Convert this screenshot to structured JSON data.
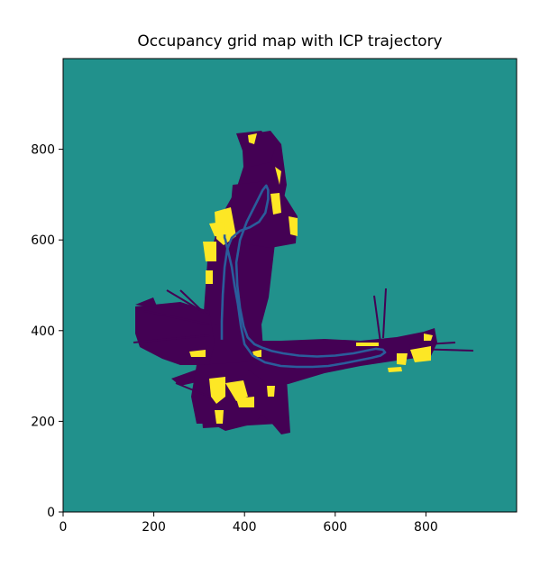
{
  "chart_data": {
    "type": "heatmap",
    "title": "Occupancy grid map with ICP trajectory",
    "xlabel": "",
    "ylabel": "",
    "xlim": [
      0,
      1000
    ],
    "ylim": [
      0,
      1000
    ],
    "x_ticks": [
      0,
      200,
      400,
      600,
      800
    ],
    "y_ticks": [
      0,
      200,
      400,
      600,
      800
    ],
    "grid": false,
    "colormap": "viridis",
    "colors": {
      "unknown": "#21918c",
      "free": "#440154",
      "occupied": "#fde725",
      "trajectory": "#2a5d9b"
    },
    "trajectory": {
      "x": [
        350,
        350,
        352,
        356,
        362,
        372,
        390,
        412,
        432,
        446,
        452,
        452,
        448,
        440,
        425,
        405,
        390,
        382,
        384,
        390,
        398,
        407,
        422,
        440,
        460,
        485,
        520,
        560,
        600,
        640,
        670,
        690,
        705,
        710,
        700,
        680,
        650,
        620,
        585,
        550,
        515,
        480,
        445,
        418,
        400,
        392,
        385,
        378,
        372,
        365,
        360,
        358,
        356,
        356,
        356
      ],
      "y": [
        380,
        420,
        480,
        540,
        580,
        605,
        620,
        628,
        640,
        660,
        690,
        710,
        720,
        710,
        680,
        640,
        600,
        550,
        500,
        450,
        410,
        385,
        370,
        362,
        355,
        350,
        345,
        343,
        345,
        350,
        356,
        360,
        358,
        352,
        345,
        340,
        334,
        328,
        322,
        320,
        320,
        322,
        330,
        345,
        370,
        410,
        460,
        500,
        540,
        570,
        590,
        600,
        605,
        610,
        612
      ]
    }
  }
}
